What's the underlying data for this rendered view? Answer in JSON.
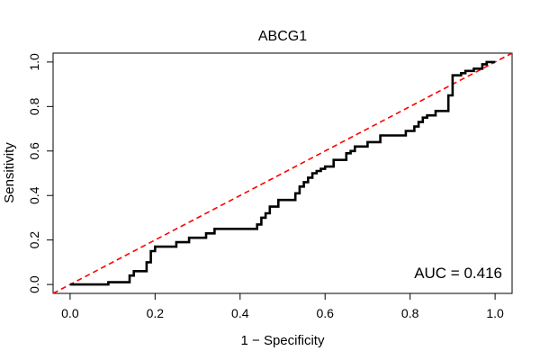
{
  "chart_data": {
    "type": "line",
    "title": "ABCG1",
    "xlabel": "1 − Specificity",
    "ylabel": "Sensitivity",
    "xlim": [
      -0.04,
      1.04
    ],
    "ylim": [
      -0.04,
      1.04
    ],
    "xticks": [
      0.0,
      0.2,
      0.4,
      0.6,
      0.8,
      1.0
    ],
    "yticks": [
      0.0,
      0.2,
      0.4,
      0.6,
      0.8,
      1.0
    ],
    "xtick_labels": [
      "0.0",
      "0.2",
      "0.4",
      "0.6",
      "0.8",
      "1.0"
    ],
    "ytick_labels": [
      "0.0",
      "0.2",
      "0.4",
      "0.6",
      "0.8",
      "1.0"
    ],
    "grid": false,
    "annotation": "AUC = 0.416",
    "reference_line": {
      "x": [
        0,
        1
      ],
      "y": [
        0,
        1
      ],
      "color": "#ff0000",
      "style": "dashed"
    },
    "series": [
      {
        "color": "#000000",
        "x": [
          0.0,
          0.09,
          0.09,
          0.14,
          0.14,
          0.15,
          0.15,
          0.18,
          0.18,
          0.19,
          0.19,
          0.2,
          0.2,
          0.25,
          0.25,
          0.28,
          0.28,
          0.32,
          0.32,
          0.34,
          0.34,
          0.44,
          0.44,
          0.45,
          0.45,
          0.46,
          0.46,
          0.47,
          0.47,
          0.49,
          0.49,
          0.53,
          0.53,
          0.54,
          0.54,
          0.55,
          0.55,
          0.56,
          0.56,
          0.57,
          0.57,
          0.58,
          0.58,
          0.59,
          0.59,
          0.6,
          0.6,
          0.62,
          0.62,
          0.65,
          0.65,
          0.66,
          0.66,
          0.67,
          0.67,
          0.7,
          0.7,
          0.73,
          0.73,
          0.79,
          0.79,
          0.81,
          0.81,
          0.82,
          0.82,
          0.83,
          0.83,
          0.84,
          0.84,
          0.86,
          0.86,
          0.89,
          0.89,
          0.9,
          0.9,
          0.92,
          0.92,
          0.93,
          0.93,
          0.95,
          0.95,
          0.97,
          0.97,
          0.98,
          0.98,
          1.0
        ],
        "y": [
          0.0,
          0.0,
          0.01,
          0.01,
          0.04,
          0.04,
          0.06,
          0.06,
          0.1,
          0.1,
          0.15,
          0.15,
          0.17,
          0.17,
          0.19,
          0.19,
          0.21,
          0.21,
          0.23,
          0.23,
          0.25,
          0.25,
          0.27,
          0.27,
          0.3,
          0.3,
          0.32,
          0.32,
          0.35,
          0.35,
          0.38,
          0.38,
          0.41,
          0.41,
          0.44,
          0.44,
          0.46,
          0.46,
          0.48,
          0.48,
          0.5,
          0.5,
          0.51,
          0.51,
          0.52,
          0.52,
          0.53,
          0.53,
          0.56,
          0.56,
          0.59,
          0.59,
          0.6,
          0.6,
          0.62,
          0.62,
          0.64,
          0.64,
          0.67,
          0.67,
          0.69,
          0.69,
          0.71,
          0.71,
          0.73,
          0.73,
          0.75,
          0.75,
          0.76,
          0.76,
          0.78,
          0.78,
          0.85,
          0.85,
          0.94,
          0.94,
          0.95,
          0.95,
          0.96,
          0.96,
          0.97,
          0.97,
          0.99,
          0.99,
          1.0,
          1.0
        ]
      }
    ]
  }
}
